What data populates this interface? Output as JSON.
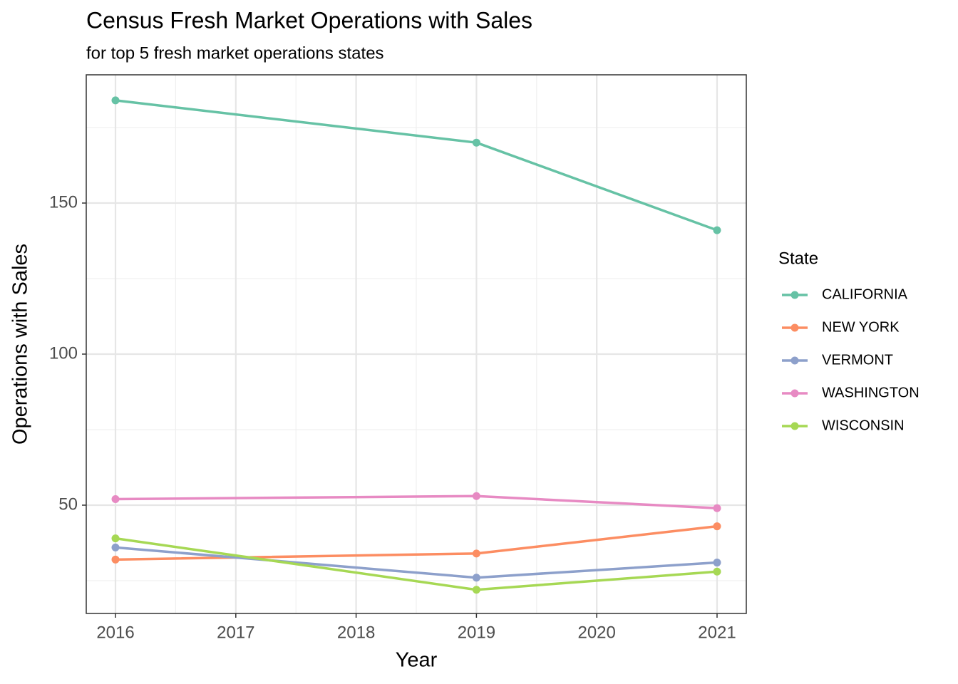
{
  "chart_data": {
    "type": "line",
    "title": "Census Fresh Market Operations with Sales",
    "subtitle": "for top 5 fresh market operations states",
    "x_label": "Year",
    "y_label": "Operations with Sales",
    "legend_title": "State",
    "legend_position": "right",
    "grid": true,
    "x": [
      2016,
      2019,
      2021
    ],
    "series": [
      {
        "name": "CALIFORNIA",
        "color": "#66c2a5",
        "values": [
          184,
          170,
          141
        ]
      },
      {
        "name": "NEW YORK",
        "color": "#fc8d62",
        "values": [
          32,
          34,
          43
        ]
      },
      {
        "name": "VERMONT",
        "color": "#8da0cb",
        "values": [
          36,
          26,
          31
        ]
      },
      {
        "name": "WASHINGTON",
        "color": "#e78ac3",
        "values": [
          52,
          53,
          49
        ]
      },
      {
        "name": "WISCONSIN",
        "color": "#a6d854",
        "values": [
          39,
          22,
          28
        ]
      }
    ],
    "xlim": [
      2015.757,
      2021.243
    ],
    "xticks": [
      2016,
      2017,
      2018,
      2019,
      2020,
      2021
    ],
    "ylim": [
      14.15,
      192.45
    ],
    "yticks": [
      50,
      100,
      150
    ]
  }
}
